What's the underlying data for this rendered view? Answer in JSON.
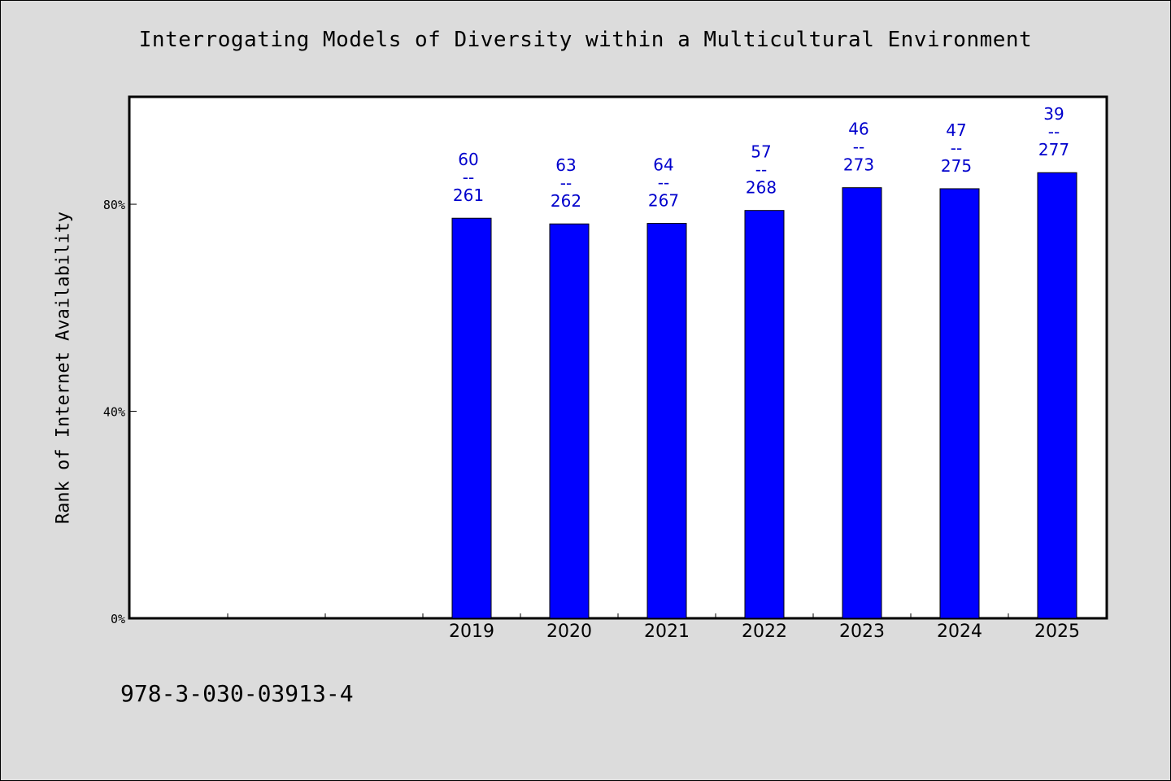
{
  "page": {
    "background": "#dcdcdc",
    "footer_code": "978-3-030-03913-4"
  },
  "chart_data": {
    "type": "bar",
    "title": "Interrogating Models of Diversity within a Multicultural Environment",
    "xlabel": "",
    "ylabel": "Rank of Internet Availability",
    "categories": [
      "",
      "",
      "",
      "2019",
      "2020",
      "2021",
      "2022",
      "2023",
      "2024",
      "2025"
    ],
    "values": [
      null,
      null,
      null,
      77.3,
      76.2,
      76.3,
      78.8,
      83.2,
      83.0,
      86.1
    ],
    "bar_labels": [
      null,
      null,
      null,
      [
        "60",
        "--",
        "261"
      ],
      [
        "63",
        "--",
        "262"
      ],
      [
        "64",
        "--",
        "267"
      ],
      [
        "57",
        "--",
        "268"
      ],
      [
        "46",
        "--",
        "273"
      ],
      [
        "47",
        "--",
        "275"
      ],
      [
        "39",
        "--",
        "277"
      ]
    ],
    "ylim": [
      0,
      100.6
    ],
    "yticks": [
      0,
      40,
      80
    ],
    "ytick_labels": [
      "0%",
      "40%",
      "80%"
    ],
    "grid": false,
    "legend": "none",
    "colors": {
      "bar": "#0000ff",
      "bar_label": "#0000cc",
      "plot_background": "#ffffff",
      "axis": "#000000"
    }
  }
}
